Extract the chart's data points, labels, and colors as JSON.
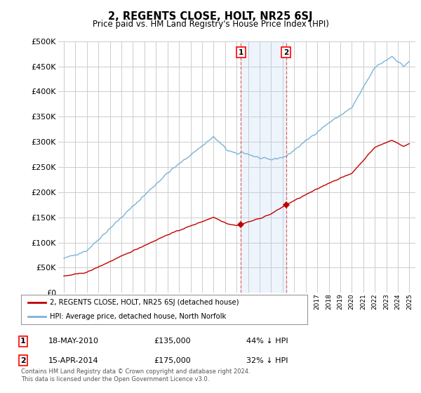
{
  "title": "2, REGENTS CLOSE, HOLT, NR25 6SJ",
  "subtitle": "Price paid vs. HM Land Registry's House Price Index (HPI)",
  "hpi_label": "HPI: Average price, detached house, North Norfolk",
  "property_label": "2, REGENTS CLOSE, HOLT, NR25 6SJ (detached house)",
  "hpi_color": "#7ab3d9",
  "property_color": "#c00000",
  "sale1_date": "18-MAY-2010",
  "sale1_price": 135000,
  "sale1_pct": "44% ↓ HPI",
  "sale2_date": "15-APR-2014",
  "sale2_price": 175000,
  "sale2_pct": "32% ↓ HPI",
  "sale1_x": 2010.37,
  "sale2_x": 2014.29,
  "ylim": [
    0,
    500000
  ],
  "yticks": [
    0,
    50000,
    100000,
    150000,
    200000,
    250000,
    300000,
    350000,
    400000,
    450000,
    500000
  ],
  "copyright_text": "Contains HM Land Registry data © Crown copyright and database right 2024.\nThis data is licensed under the Open Government Licence v3.0.",
  "background_color": "#ffffff",
  "grid_color": "#cccccc",
  "shade_color": "#ddeeff"
}
